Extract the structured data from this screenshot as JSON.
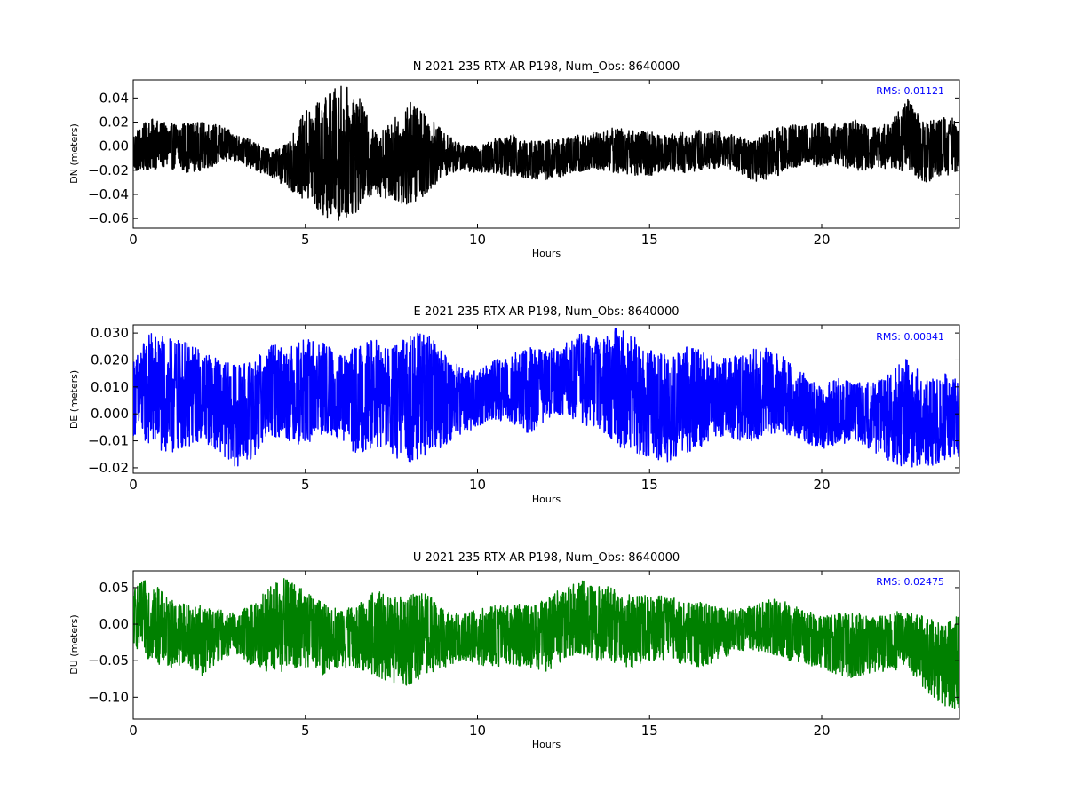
{
  "chart_data": [
    {
      "type": "line",
      "title": "N 2021 235 RTX-AR  P198, Num_Obs: 8640000",
      "xlabel": "Hours",
      "ylabel": "DN (meters)",
      "xlim": [
        0,
        24
      ],
      "ylim": [
        -0.068,
        0.055
      ],
      "xticks": [
        0,
        5,
        10,
        15,
        20
      ],
      "xtick_labels": [
        "0",
        "5",
        "10",
        "15",
        "20"
      ],
      "yticks": [
        -0.06,
        -0.04,
        -0.02,
        0.0,
        0.02,
        0.04
      ],
      "ytick_labels": [
        "−0.06",
        "−0.04",
        "−0.02",
        "0.00",
        "0.02",
        "0.04"
      ],
      "grid": false,
      "annotation": "RMS:  0.01121",
      "annotation_color": "#0000ff",
      "series": [
        {
          "color": "#000000",
          "envelope": {
            "x": [
              0,
              0.5,
              1,
              1.5,
              2,
              2.5,
              3,
              3.5,
              4,
              4.5,
              5,
              5.5,
              6,
              6.5,
              7,
              7.5,
              8,
              8.5,
              9,
              9.5,
              10,
              10.5,
              11,
              11.5,
              12,
              12.5,
              13,
              13.5,
              14,
              14.5,
              15,
              15.5,
              16,
              16.5,
              17,
              17.5,
              18,
              18.5,
              19,
              19.5,
              20,
              20.5,
              21,
              21.5,
              22,
              22.5,
              23,
              23.5,
              24
            ],
            "upper": [
              0.012,
              0.023,
              0.019,
              0.02,
              0.02,
              0.018,
              0.01,
              0.004,
              -0.003,
              0.002,
              0.03,
              0.04,
              0.052,
              0.045,
              0.012,
              0.02,
              0.038,
              0.03,
              0.012,
              0.002,
              0.0,
              0.006,
              0.01,
              0.005,
              0.005,
              0.007,
              0.01,
              0.012,
              0.016,
              0.014,
              0.012,
              0.01,
              0.012,
              0.014,
              0.013,
              0.01,
              0.004,
              0.013,
              0.02,
              0.018,
              0.02,
              0.018,
              0.022,
              0.015,
              0.02,
              0.04,
              0.02,
              0.025,
              0.022
            ],
            "lower": [
              -0.022,
              -0.02,
              -0.018,
              -0.022,
              -0.02,
              -0.015,
              -0.012,
              -0.02,
              -0.025,
              -0.035,
              -0.045,
              -0.06,
              -0.062,
              -0.055,
              -0.04,
              -0.045,
              -0.05,
              -0.04,
              -0.025,
              -0.02,
              -0.022,
              -0.022,
              -0.025,
              -0.028,
              -0.028,
              -0.025,
              -0.022,
              -0.02,
              -0.022,
              -0.024,
              -0.025,
              -0.02,
              -0.022,
              -0.02,
              -0.018,
              -0.02,
              -0.03,
              -0.028,
              -0.02,
              -0.015,
              -0.018,
              -0.016,
              -0.02,
              -0.02,
              -0.018,
              -0.022,
              -0.03,
              -0.026,
              -0.02
            ]
          }
        }
      ]
    },
    {
      "type": "line",
      "title": "E 2021 235 RTX-AR  P198, Num_Obs: 8640000",
      "xlabel": "Hours",
      "ylabel": "DE (meters)",
      "xlim": [
        0,
        24
      ],
      "ylim": [
        -0.022,
        0.033
      ],
      "xticks": [
        0,
        5,
        10,
        15,
        20
      ],
      "xtick_labels": [
        "0",
        "5",
        "10",
        "15",
        "20"
      ],
      "yticks": [
        -0.02,
        -0.01,
        0.0,
        0.01,
        0.02,
        0.03
      ],
      "ytick_labels": [
        "−0.02",
        "−0.01",
        "0.000",
        "0.010",
        "0.020",
        "0.030"
      ],
      "grid": false,
      "annotation": "RMS:  0.00841",
      "annotation_color": "#0000ff",
      "series": [
        {
          "color": "#0000ff",
          "envelope": {
            "x": [
              0,
              0.5,
              1,
              1.5,
              2,
              2.5,
              3,
              3.5,
              4,
              4.5,
              5,
              5.5,
              6,
              6.5,
              7,
              7.5,
              8,
              8.5,
              9,
              9.5,
              10,
              10.5,
              11,
              11.5,
              12,
              12.5,
              13,
              13.5,
              14,
              14.5,
              15,
              15.5,
              16,
              16.5,
              17,
              17.5,
              18,
              18.5,
              19,
              19.5,
              20,
              20.5,
              21,
              21.5,
              22,
              22.5,
              23,
              23.5,
              24
            ],
            "upper": [
              0.02,
              0.031,
              0.028,
              0.027,
              0.024,
              0.02,
              0.018,
              0.02,
              0.026,
              0.025,
              0.028,
              0.027,
              0.022,
              0.025,
              0.028,
              0.024,
              0.03,
              0.03,
              0.024,
              0.018,
              0.016,
              0.02,
              0.022,
              0.025,
              0.024,
              0.026,
              0.03,
              0.028,
              0.032,
              0.03,
              0.024,
              0.022,
              0.025,
              0.024,
              0.02,
              0.022,
              0.024,
              0.025,
              0.02,
              0.015,
              0.01,
              0.014,
              0.012,
              0.012,
              0.015,
              0.022,
              0.013,
              0.016,
              0.014
            ],
            "lower": [
              -0.008,
              -0.012,
              -0.016,
              -0.013,
              -0.01,
              -0.014,
              -0.02,
              -0.016,
              -0.008,
              -0.01,
              -0.012,
              -0.008,
              -0.01,
              -0.015,
              -0.012,
              -0.016,
              -0.018,
              -0.016,
              -0.012,
              -0.008,
              -0.005,
              -0.002,
              -0.004,
              -0.008,
              -0.002,
              0.0,
              -0.004,
              -0.005,
              -0.012,
              -0.014,
              -0.016,
              -0.018,
              -0.015,
              -0.012,
              -0.008,
              -0.01,
              -0.01,
              -0.008,
              -0.008,
              -0.01,
              -0.014,
              -0.012,
              -0.01,
              -0.014,
              -0.018,
              -0.02,
              -0.02,
              -0.018,
              -0.016
            ]
          }
        }
      ]
    },
    {
      "type": "line",
      "title": "U 2021 235 RTX-AR  P198, Num_Obs: 8640000",
      "xlabel": "Hours",
      "ylabel": "DU (meters)",
      "xlim": [
        0,
        24
      ],
      "ylim": [
        -0.13,
        0.073
      ],
      "xticks": [
        0,
        5,
        10,
        15,
        20
      ],
      "xtick_labels": [
        "0",
        "5",
        "10",
        "15",
        "20"
      ],
      "yticks": [
        -0.1,
        -0.05,
        0.0,
        0.05
      ],
      "ytick_labels": [
        "−0.10",
        "−0.05",
        "0.00",
        "0.05"
      ],
      "grid": false,
      "annotation": "RMS:  0.02475",
      "annotation_color": "#0000ff",
      "series": [
        {
          "color": "#008000",
          "envelope": {
            "x": [
              0,
              0.5,
              1,
              1.5,
              2,
              2.5,
              3,
              3.5,
              4,
              4.5,
              5,
              5.5,
              6,
              6.5,
              7,
              7.5,
              8,
              8.5,
              9,
              9.5,
              10,
              10.5,
              11,
              11.5,
              12,
              12.5,
              13,
              13.5,
              14,
              14.5,
              15,
              15.5,
              16,
              16.5,
              17,
              17.5,
              18,
              18.5,
              19,
              19.5,
              20,
              20.5,
              21,
              21.5,
              22,
              22.5,
              23,
              23.5,
              24
            ],
            "upper": [
              0.05,
              0.065,
              0.035,
              0.03,
              0.025,
              0.02,
              0.015,
              0.03,
              0.055,
              0.065,
              0.045,
              0.03,
              0.02,
              0.025,
              0.05,
              0.035,
              0.04,
              0.045,
              0.02,
              0.015,
              0.02,
              0.025,
              0.03,
              0.025,
              0.035,
              0.055,
              0.06,
              0.055,
              0.05,
              0.04,
              0.04,
              0.04,
              0.03,
              0.03,
              0.025,
              0.02,
              0.025,
              0.035,
              0.03,
              0.02,
              0.01,
              0.015,
              0.015,
              0.01,
              0.02,
              0.015,
              0.015,
              0.0,
              0.02
            ],
            "lower": [
              -0.03,
              -0.05,
              -0.06,
              -0.055,
              -0.07,
              -0.05,
              -0.04,
              -0.06,
              -0.07,
              -0.065,
              -0.06,
              -0.07,
              -0.06,
              -0.06,
              -0.07,
              -0.08,
              -0.085,
              -0.07,
              -0.06,
              -0.05,
              -0.055,
              -0.06,
              -0.055,
              -0.06,
              -0.065,
              -0.05,
              -0.04,
              -0.05,
              -0.055,
              -0.06,
              -0.05,
              -0.05,
              -0.055,
              -0.06,
              -0.05,
              -0.04,
              -0.035,
              -0.04,
              -0.05,
              -0.055,
              -0.06,
              -0.07,
              -0.075,
              -0.065,
              -0.065,
              -0.06,
              -0.09,
              -0.11,
              -0.12
            ]
          }
        }
      ]
    }
  ]
}
